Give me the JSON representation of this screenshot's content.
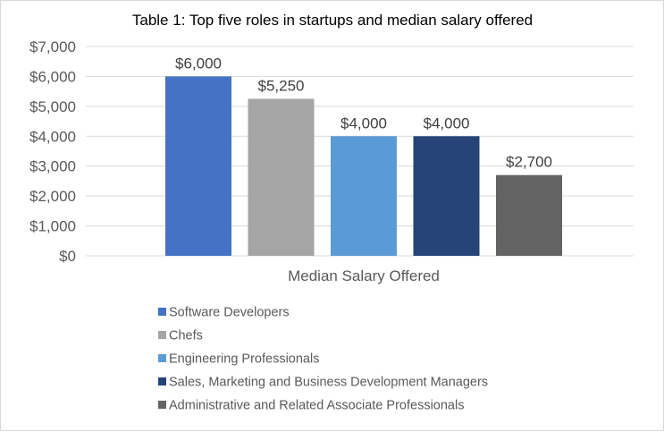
{
  "chart_data": {
    "type": "bar",
    "title": "Table 1: Top five roles in startups and median salary offered",
    "categories": [
      "Median Salary Offered"
    ],
    "series": [
      {
        "name": "Software Developers",
        "values": [
          6000
        ],
        "color": "#4472c4",
        "label": "$6,000"
      },
      {
        "name": "Chefs",
        "values": [
          5250
        ],
        "color": "#a5a5a5",
        "label": "$5,250"
      },
      {
        "name": "Engineering Professionals",
        "values": [
          4000
        ],
        "color": "#5b9bd5",
        "label": "$4,000"
      },
      {
        "name": "Sales, Marketing and Business Development Managers",
        "values": [
          4000
        ],
        "color": "#264478",
        "label": "$4,000"
      },
      {
        "name": "Administrative and Related Associate Professionals",
        "values": [
          2700
        ],
        "color": "#636363",
        "label": "$2,700"
      }
    ],
    "ylim": [
      0,
      7000
    ],
    "yticks": [
      {
        "value": 0,
        "label": "$0"
      },
      {
        "value": 1000,
        "label": "$1,000"
      },
      {
        "value": 2000,
        "label": "$2,000"
      },
      {
        "value": 3000,
        "label": "$3,000"
      },
      {
        "value": 4000,
        "label": "$4,000"
      },
      {
        "value": 5000,
        "label": "$5,000"
      },
      {
        "value": 6000,
        "label": "$6,000"
      },
      {
        "value": 7000,
        "label": "$7,000"
      }
    ],
    "grid": true,
    "legend_position": "bottom"
  }
}
